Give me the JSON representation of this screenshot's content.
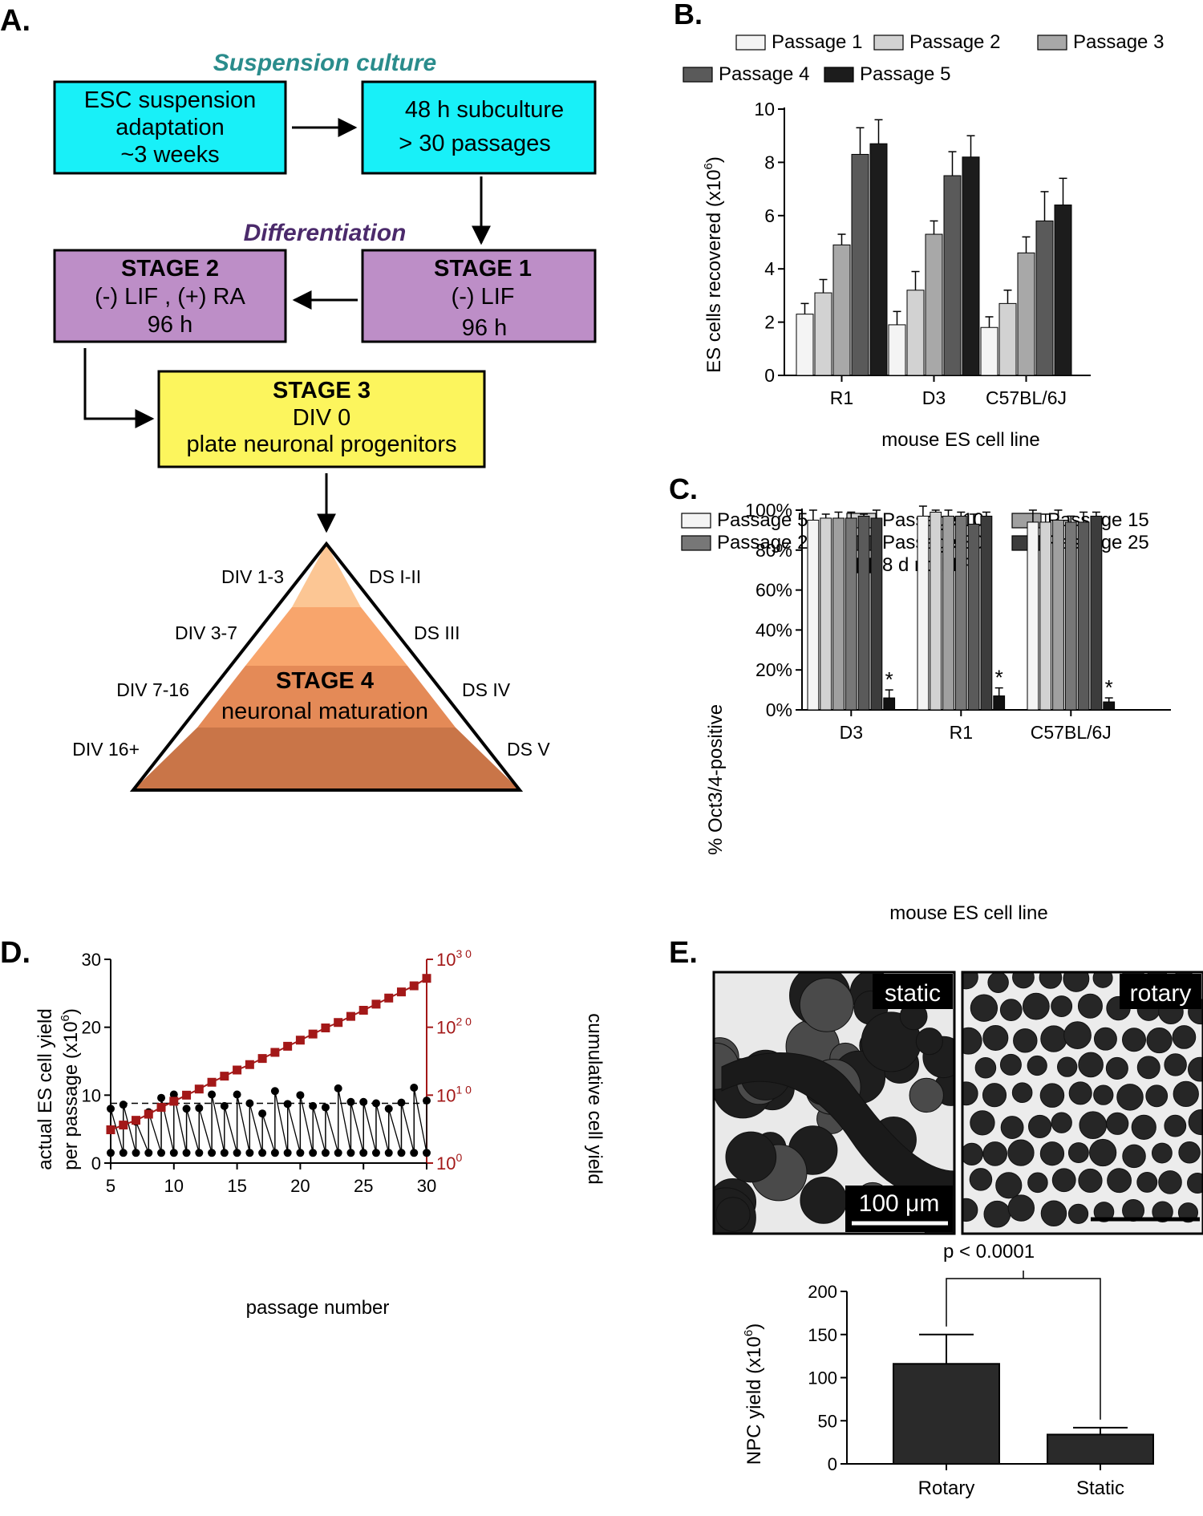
{
  "panel_a": {
    "label": "A.",
    "suspension_title": "Suspension culture",
    "differentiation_title": "Differentiation",
    "box1": [
      "ESC suspension",
      "adaptation",
      "~3 weeks"
    ],
    "box2": [
      "48 h subculture",
      "> 30 passages"
    ],
    "stage1": [
      "STAGE 1",
      "(-) LIF",
      "96 h"
    ],
    "stage2": [
      "STAGE 2",
      "(-) LIF , (+) RA",
      "96 h"
    ],
    "stage3": [
      "STAGE 3",
      "DIV 0",
      "plate neuronal progenitors"
    ],
    "stage4": [
      "STAGE 4",
      "neuronal maturation"
    ],
    "div_left": [
      "DIV 1-3",
      "DIV 3-7",
      "DIV 7-16",
      "DIV 16+"
    ],
    "ds_right": [
      "DS I-II",
      "DS III",
      "DS IV",
      "DS V"
    ],
    "colors": {
      "cyan": "#18f0f8",
      "purple": "#bd8ec7",
      "yellow": "#fcf55d",
      "teal_text": "#2a8c8c",
      "purple_text": "#4b2a6b",
      "tri1": "#fcc694",
      "tri2": "#f8a56c",
      "tri3": "#e48a57",
      "tri4": "#c97548"
    }
  },
  "panel_b": {
    "label": "B.",
    "chart_data": {
      "type": "bar",
      "categories": [
        "R1",
        "D3",
        "C57BL/6J"
      ],
      "series": [
        {
          "name": "Passage 1",
          "values": [
            2.3,
            1.9,
            1.8
          ],
          "errors": [
            0.4,
            0.5,
            0.4
          ],
          "color": "#f4f4f4"
        },
        {
          "name": "Passage 2",
          "values": [
            3.1,
            3.2,
            2.7
          ],
          "errors": [
            0.5,
            0.7,
            0.5
          ],
          "color": "#d2d2d2"
        },
        {
          "name": "Passage 3",
          "values": [
            4.9,
            5.3,
            4.6
          ],
          "errors": [
            0.4,
            0.5,
            0.6
          ],
          "color": "#a8a8a8"
        },
        {
          "name": "Passage 4",
          "values": [
            8.3,
            7.5,
            5.8
          ],
          "errors": [
            1.0,
            0.9,
            1.1
          ],
          "color": "#5a5a5a"
        },
        {
          "name": "Passage 5",
          "values": [
            8.7,
            8.2,
            6.4
          ],
          "errors": [
            0.9,
            0.8,
            1.0
          ],
          "color": "#1c1c1c"
        }
      ],
      "xlabel": "mouse ES cell line",
      "ylabel": "ES cells recovered (x10",
      "ylabel_sup": "6",
      "ylabel_end": ")",
      "ylim": [
        0,
        10
      ],
      "yticks": [
        "0",
        "2",
        "4",
        "6",
        "8",
        "10"
      ]
    }
  },
  "panel_c": {
    "label": "C.",
    "chart_data": {
      "type": "bar",
      "categories": [
        "D3",
        "R1",
        "C57BL/6J"
      ],
      "series": [
        {
          "name": "Passage 5",
          "values": [
            95,
            97,
            94
          ],
          "errors": [
            5,
            5,
            6
          ],
          "color": "#f4f4f4"
        },
        {
          "name": "Passage 10",
          "values": [
            96,
            99,
            94
          ],
          "errors": [
            2,
            1,
            4
          ],
          "color": "#d2d2d2"
        },
        {
          "name": "Passage 15",
          "values": [
            96,
            97,
            95
          ],
          "errors": [
            3,
            3,
            5
          ],
          "color": "#a0a0a0"
        },
        {
          "name": "Passage 20",
          "values": [
            96,
            97,
            94
          ],
          "errors": [
            3,
            2,
            3
          ],
          "color": "#777777"
        },
        {
          "name": "Passage 30",
          "values": [
            97,
            93,
            94
          ],
          "errors": [
            1,
            5,
            5
          ],
          "color": "#5a5a5a"
        },
        {
          "name": "Passage 25",
          "values": [
            96,
            97,
            97
          ],
          "errors": [
            4,
            2,
            2
          ],
          "color": "#3c3c3c"
        },
        {
          "name": "8 d no LIF",
          "values": [
            6,
            7,
            4
          ],
          "errors": [
            4,
            4,
            2
          ],
          "color": "#111111"
        }
      ],
      "significance": [
        "*",
        "*",
        "*"
      ],
      "xlabel": "mouse ES cell line",
      "ylabel": "% Oct3/4-positive",
      "ylim": [
        0,
        100
      ],
      "yticks": [
        "0%",
        "20%",
        "40%",
        "60%",
        "80%",
        "100%"
      ]
    }
  },
  "panel_d": {
    "label": "D.",
    "chart_data": {
      "type": "line",
      "x": [
        5,
        6,
        7,
        8,
        9,
        10,
        11,
        12,
        13,
        14,
        15,
        16,
        17,
        18,
        19,
        20,
        21,
        22,
        23,
        24,
        25,
        26,
        27,
        28,
        29,
        30
      ],
      "series": [
        {
          "name": "actual ES cell yield per passage",
          "color": "#000000",
          "high": [
            8.0,
            8.6,
            6.1,
            7.5,
            9.6,
            10.1,
            8.0,
            8.1,
            10.1,
            8.4,
            10.1,
            8.8,
            7.3,
            10.6,
            8.7,
            10.0,
            8.4,
            8.2,
            11.0,
            9.0,
            9.0,
            8.8,
            8.0,
            8.9,
            11.1,
            9.2
          ],
          "low": 1.5
        },
        {
          "name": "cumulative cell yield",
          "color": "#a31818",
          "log_values": [
            4.9,
            5.6,
            6.3,
            7.2,
            8.2,
            9.1,
            10.0,
            10.9,
            11.9,
            12.8,
            13.7,
            14.5,
            15.4,
            16.3,
            17.2,
            18.1,
            19.0,
            19.9,
            20.7,
            21.6,
            22.5,
            23.4,
            24.3,
            25.2,
            26.1,
            27.2
          ]
        }
      ],
      "reference_line": 8.8,
      "xlabel": "passage number",
      "ylabel": [
        "actual ES cell yield",
        "per passage (x10",
        "6",
        ")"
      ],
      "y2label": "cumulative cell yield",
      "ylim": [
        0,
        30
      ],
      "y2lim_exp": [
        0,
        30
      ],
      "xticks": [
        "5",
        "10",
        "15",
        "20",
        "25",
        "30"
      ],
      "yticks": [
        "0",
        "10",
        "20",
        "30"
      ],
      "y2ticks": [
        [
          "10",
          "0"
        ],
        [
          "10",
          "1 0"
        ],
        [
          "10",
          "2 0"
        ],
        [
          "10",
          "3 0"
        ]
      ]
    }
  },
  "panel_e": {
    "label": "E.",
    "image_labels": [
      "static",
      "rotary"
    ],
    "scale_bar": "100 μm",
    "chart_data": {
      "type": "bar",
      "categories": [
        "Rotary",
        "Static"
      ],
      "values": [
        116,
        34
      ],
      "errors": [
        34,
        8
      ],
      "color": "#2a2a2a",
      "annotation": "p < 0.0001",
      "ylabel": "NPC yield (x10",
      "ylabel_sup": "6",
      "ylabel_end": ")",
      "ylim": [
        0,
        200
      ],
      "yticks": [
        "0",
        "50",
        "100",
        "150",
        "200"
      ]
    }
  }
}
